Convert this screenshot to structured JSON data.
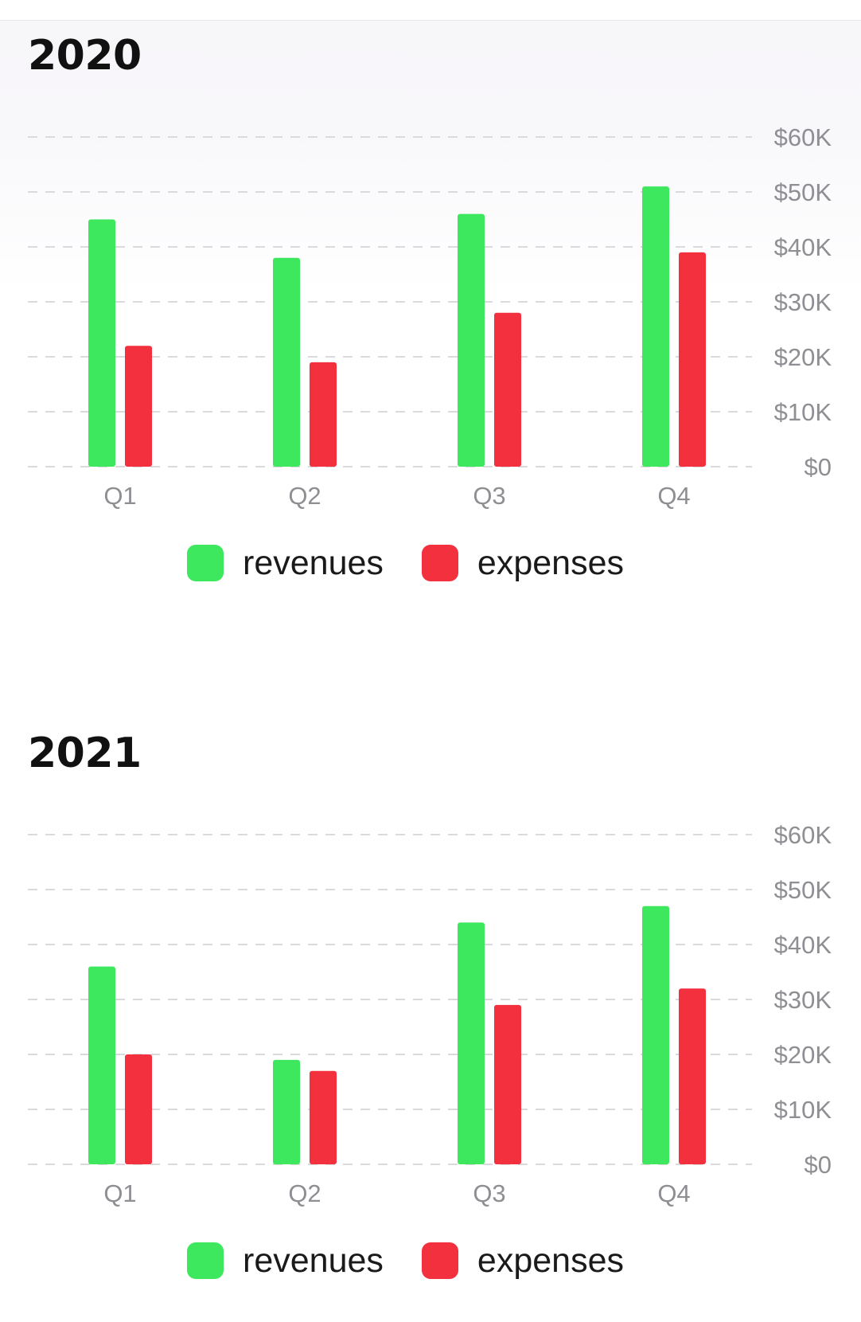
{
  "colors": {
    "revenues": "#3de85e",
    "expenses": "#f2303e",
    "grid": "#d9d9de",
    "tick_text": "#8e8e93"
  },
  "legend": {
    "items": [
      {
        "label": "revenues",
        "color": "#3de85e"
      },
      {
        "label": "expenses",
        "color": "#f2303e"
      }
    ]
  },
  "chart_data": [
    {
      "type": "bar",
      "title": "2020",
      "categories": [
        "Q1",
        "Q2",
        "Q3",
        "Q4"
      ],
      "series": [
        {
          "name": "revenues",
          "values": [
            45000,
            38000,
            46000,
            51000
          ]
        },
        {
          "name": "expenses",
          "values": [
            22000,
            19000,
            28000,
            39000
          ]
        }
      ],
      "ylim": [
        0,
        60000
      ],
      "y_ticks": [
        0,
        10000,
        20000,
        30000,
        40000,
        50000,
        60000
      ],
      "y_tick_labels": [
        "$0",
        "$10K",
        "$20K",
        "$30K",
        "$40K",
        "$50K",
        "$60K"
      ],
      "y_axis_position": "right",
      "grid": true,
      "legend_position": "bottom"
    },
    {
      "type": "bar",
      "title": "2021",
      "categories": [
        "Q1",
        "Q2",
        "Q3",
        "Q4"
      ],
      "series": [
        {
          "name": "revenues",
          "values": [
            36000,
            19000,
            44000,
            47000
          ]
        },
        {
          "name": "expenses",
          "values": [
            20000,
            17000,
            29000,
            32000
          ]
        }
      ],
      "ylim": [
        0,
        60000
      ],
      "y_ticks": [
        0,
        10000,
        20000,
        30000,
        40000,
        50000,
        60000
      ],
      "y_tick_labels": [
        "$0",
        "$10K",
        "$20K",
        "$30K",
        "$40K",
        "$50K",
        "$60K"
      ],
      "y_axis_position": "right",
      "grid": true,
      "legend_position": "bottom"
    }
  ]
}
